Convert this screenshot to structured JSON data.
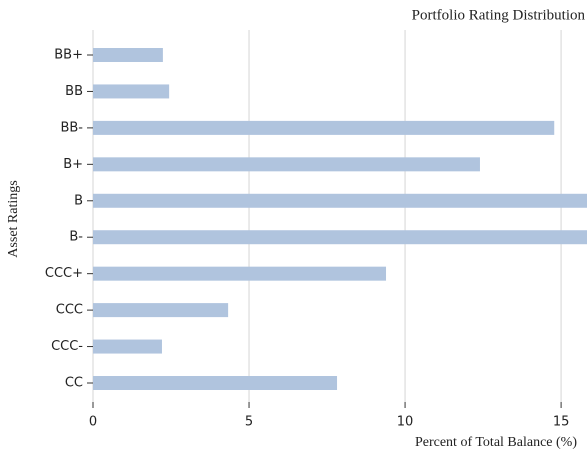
{
  "chart_data": {
    "type": "barh",
    "title": "Portfolio Rating Distribution",
    "xlabel": "Percent of Total Balance (%)",
    "ylabel": "Asset Ratings",
    "categories": [
      "BB+",
      "BB",
      "BB-",
      "B+",
      "B",
      "B-",
      "CCC+",
      "CCC",
      "CCC-",
      "CC"
    ],
    "values": [
      2.24,
      2.44,
      14.78,
      12.4,
      16.2,
      16.2,
      9.39,
      4.33,
      2.21,
      7.82
    ],
    "color": "#b0c4de",
    "xlim": [
      0,
      15.83
    ],
    "xticks": [
      0,
      5,
      10,
      15
    ],
    "grid": true
  }
}
